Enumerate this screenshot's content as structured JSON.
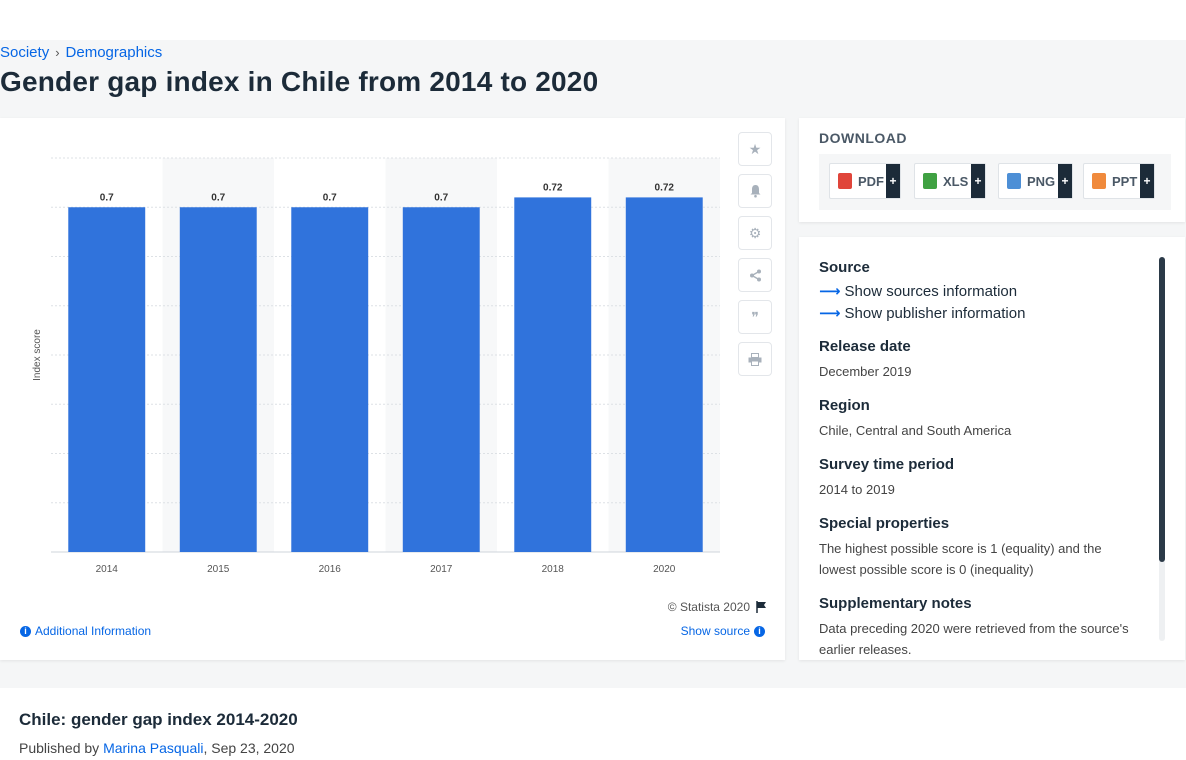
{
  "breadcrumb": {
    "items": [
      "Society",
      "Demographics"
    ]
  },
  "page_title": "Gender gap index in Chile from 2014 to 2020",
  "chart_data": {
    "type": "bar",
    "title": "",
    "xlabel": "",
    "ylabel": "Index score",
    "categories": [
      "2014",
      "2015",
      "2016",
      "2017",
      "2018",
      "2020"
    ],
    "values": [
      0.7,
      0.7,
      0.7,
      0.7,
      0.72,
      0.72
    ],
    "data_labels": [
      "0.7",
      "0.7",
      "0.7",
      "0.7",
      "0.72",
      "0.72"
    ],
    "ylim": [
      0,
      0.8
    ],
    "grid": true,
    "bar_color": "#3073dc"
  },
  "chart_footer": {
    "copyright": "© Statista 2020",
    "additional_info": "Additional Information",
    "show_source": "Show source"
  },
  "download": {
    "title": "DOWNLOAD",
    "buttons": [
      {
        "label": "PDF",
        "icon_color": "#e0453a"
      },
      {
        "label": "XLS",
        "icon_color": "#3fa142"
      },
      {
        "label": "PNG",
        "icon_color": "#4d8fd6"
      },
      {
        "label": "PPT",
        "icon_color": "#f08a3c"
      }
    ],
    "plus": "+"
  },
  "details": {
    "source_label": "Source",
    "show_sources": "Show sources information",
    "show_publisher": "Show publisher information",
    "release_label": "Release date",
    "release_value": "December 2019",
    "region_label": "Region",
    "region_value": "Chile, Central and South America",
    "survey_label": "Survey time period",
    "survey_value": "2014 to 2019",
    "special_label": "Special properties",
    "special_value": "The highest possible score is 1 (equality) and the lowest possible score is 0 (inequality)",
    "supp_label": "Supplementary notes",
    "supp_value": "Data preceding 2020 were retrieved from the source's earlier releases."
  },
  "bottom": {
    "title": "Chile: gender gap index 2014-2020",
    "published_prefix": "Published by",
    "author": "Marina Pasquali",
    "date": ", Sep 23, 2020"
  }
}
